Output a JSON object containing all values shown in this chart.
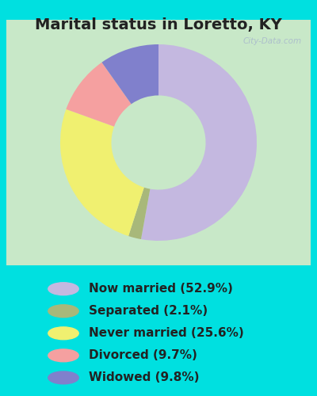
{
  "title": "Marital status in Loretto, KY",
  "slices": [
    {
      "label": "Now married (52.9%)",
      "value": 52.9,
      "color": "#c4b8e0"
    },
    {
      "label": "Separated (2.1%)",
      "value": 2.1,
      "color": "#a8b87a"
    },
    {
      "label": "Never married (25.6%)",
      "value": 25.6,
      "color": "#f0f070"
    },
    {
      "label": "Divorced (9.7%)",
      "value": 9.7,
      "color": "#f5a0a0"
    },
    {
      "label": "Widowed (9.8%)",
      "value": 9.8,
      "color": "#8080cc"
    }
  ],
  "background_cyan": "#00e0e0",
  "background_chart": "#c8e8c8",
  "title_color": "#222222",
  "title_fontsize": 14,
  "legend_fontsize": 11,
  "watermark": "City-Data.com",
  "watermark_color": "#aabbcc",
  "donut_width": 0.52,
  "startangle": 90
}
